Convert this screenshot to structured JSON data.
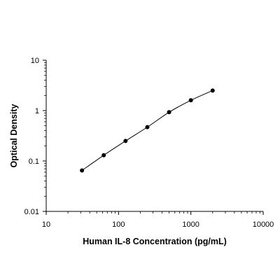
{
  "chart_data": {
    "type": "scatter",
    "x_scale": "log",
    "y_scale": "log",
    "xlabel": "Human IL-8 Concentration (pg/mL)",
    "ylabel": "Optical Density",
    "xlim": [
      10,
      10000
    ],
    "ylim": [
      0.01,
      10
    ],
    "x_ticks": [
      "10",
      "100",
      "1000",
      "10000"
    ],
    "y_ticks": [
      "0.01",
      "0.1",
      "1",
      "10"
    ],
    "grid": false,
    "legend": "none",
    "series": [
      {
        "points": [
          {
            "x": 31.25,
            "y": 0.065
          },
          {
            "x": 62.5,
            "y": 0.13
          },
          {
            "x": 125,
            "y": 0.25
          },
          {
            "x": 250,
            "y": 0.47
          },
          {
            "x": 500,
            "y": 0.93
          },
          {
            "x": 1000,
            "y": 1.6
          },
          {
            "x": 2000,
            "y": 2.5
          }
        ],
        "fit_line": true,
        "color": "#000000"
      }
    ]
  }
}
